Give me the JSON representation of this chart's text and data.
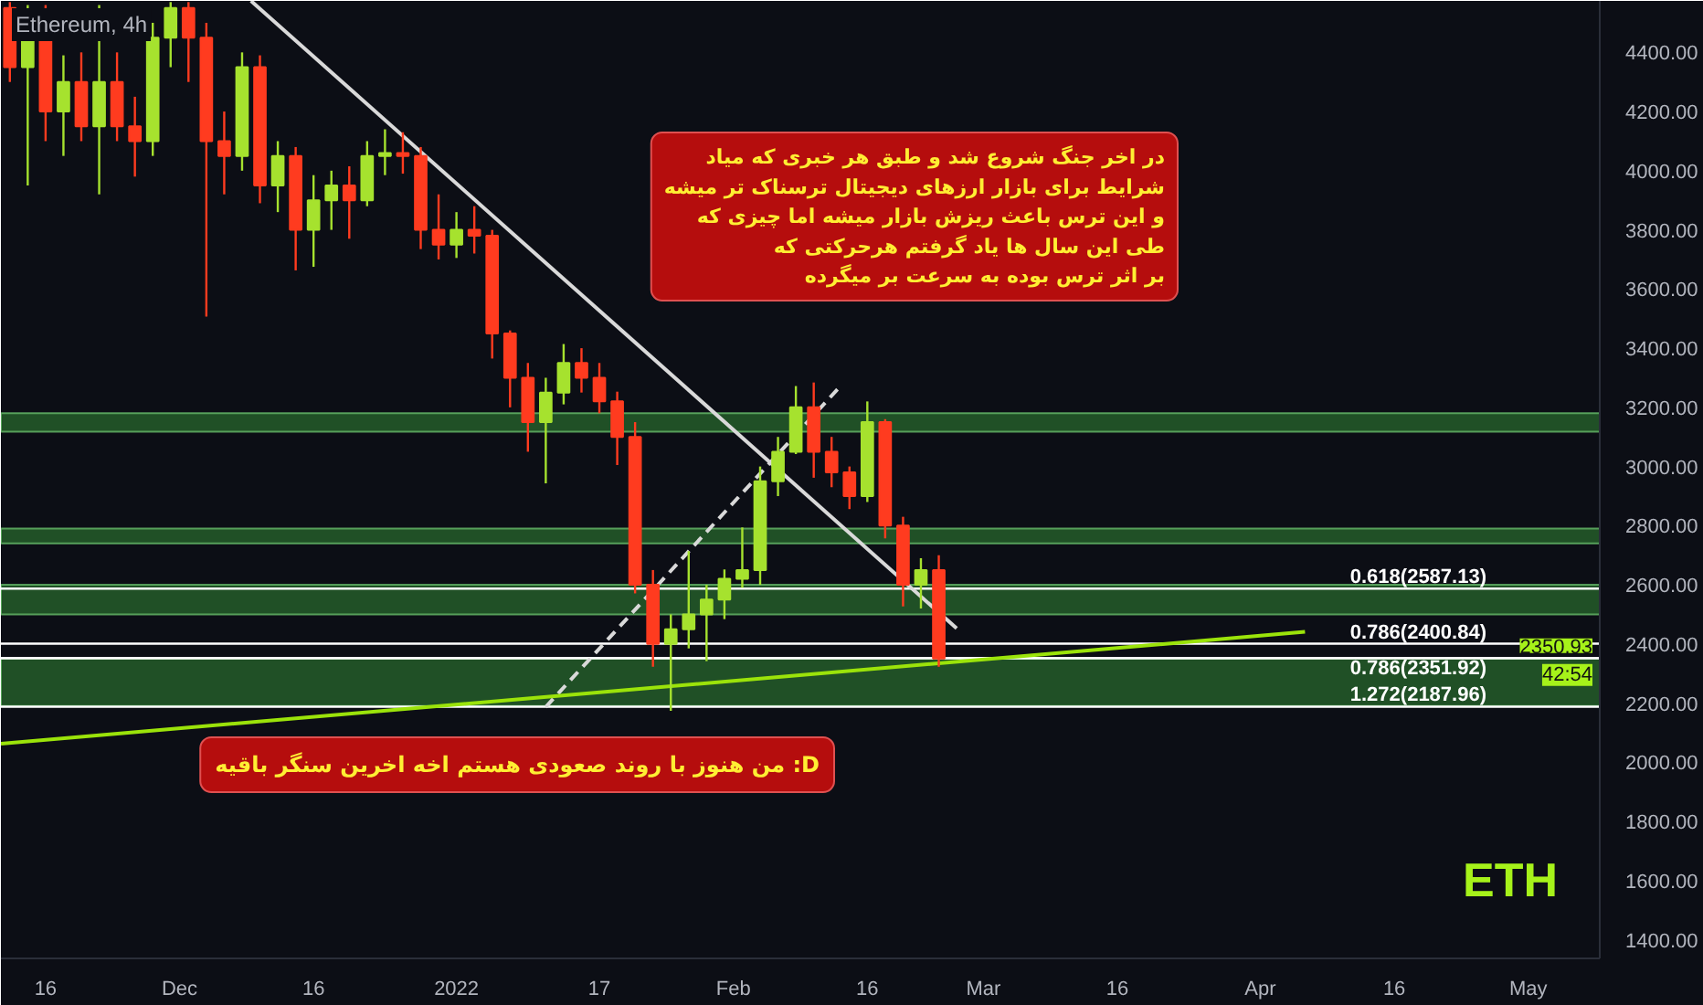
{
  "chart_data": {
    "type": "candlestick",
    "title": "Ethereum, 4h",
    "x": [
      "2021-11-12",
      "2021-11-14",
      "2021-11-16",
      "2021-11-18",
      "2021-11-20",
      "2021-11-22",
      "2021-11-24",
      "2021-11-26",
      "2021-11-28",
      "2021-11-30",
      "2021-12-02",
      "2021-12-04",
      "2021-12-06",
      "2021-12-08",
      "2021-12-10",
      "2021-12-12",
      "2021-12-14",
      "2021-12-16",
      "2021-12-18",
      "2021-12-20",
      "2021-12-22",
      "2021-12-24",
      "2021-12-26",
      "2021-12-28",
      "2021-12-30",
      "2022-01-01",
      "2022-01-03",
      "2022-01-05",
      "2022-01-07",
      "2022-01-09",
      "2022-01-11",
      "2022-01-13",
      "2022-01-15",
      "2022-01-17",
      "2022-01-19",
      "2022-01-21",
      "2022-01-23",
      "2022-01-25",
      "2022-01-27",
      "2022-01-29",
      "2022-01-31",
      "2022-02-02",
      "2022-02-04",
      "2022-02-06",
      "2022-02-08",
      "2022-02-10",
      "2022-02-12",
      "2022-02-14",
      "2022-02-16",
      "2022-02-18",
      "2022-02-20",
      "2022-02-22",
      "2022-02-24"
    ],
    "ohlc": [
      [
        4550,
        4570,
        4300,
        4350
      ],
      [
        4350,
        4560,
        3950,
        4450
      ],
      [
        4450,
        4560,
        4100,
        4200
      ],
      [
        4200,
        4390,
        4050,
        4300
      ],
      [
        4300,
        4400,
        4100,
        4150
      ],
      [
        4150,
        4560,
        3920,
        4300
      ],
      [
        4300,
        4400,
        4100,
        4150
      ],
      [
        4150,
        4250,
        3980,
        4100
      ],
      [
        4100,
        4500,
        4050,
        4450
      ],
      [
        4450,
        4570,
        4350,
        4550
      ],
      [
        4550,
        4570,
        4300,
        4450
      ],
      [
        4450,
        4500,
        3507,
        4100
      ],
      [
        4100,
        4200,
        3920,
        4050
      ],
      [
        4050,
        4400,
        4000,
        4350
      ],
      [
        4350,
        4390,
        3890,
        3950
      ],
      [
        3950,
        4100,
        3860,
        4050
      ],
      [
        4050,
        4080,
        3663,
        3800
      ],
      [
        3800,
        3985,
        3675,
        3900
      ],
      [
        3900,
        4000,
        3800,
        3950
      ],
      [
        3950,
        4015,
        3770,
        3900
      ],
      [
        3900,
        4100,
        3880,
        4050
      ],
      [
        4050,
        4140,
        3985,
        4060
      ],
      [
        4060,
        4130,
        3990,
        4050
      ],
      [
        4050,
        4080,
        3735,
        3800
      ],
      [
        3800,
        3920,
        3700,
        3750
      ],
      [
        3750,
        3860,
        3705,
        3800
      ],
      [
        3800,
        3880,
        3720,
        3780
      ],
      [
        3780,
        3800,
        3365,
        3450
      ],
      [
        3450,
        3460,
        3200,
        3300
      ],
      [
        3300,
        3350,
        3050,
        3150
      ],
      [
        3150,
        3300,
        2943,
        3250
      ],
      [
        3250,
        3414,
        3210,
        3350
      ],
      [
        3350,
        3400,
        3250,
        3300
      ],
      [
        3300,
        3350,
        3180,
        3220
      ],
      [
        3220,
        3253,
        3005,
        3100
      ],
      [
        3100,
        3150,
        2571,
        2600
      ],
      [
        2600,
        2650,
        2323,
        2400
      ],
      [
        2400,
        2500,
        2174,
        2450
      ],
      [
        2450,
        2714,
        2385,
        2500
      ],
      [
        2500,
        2600,
        2342,
        2550
      ],
      [
        2550,
        2652,
        2484,
        2620
      ],
      [
        2620,
        2794,
        2590,
        2650
      ],
      [
        2650,
        3000,
        2600,
        2950
      ],
      [
        2950,
        3100,
        2900,
        3050
      ],
      [
        3050,
        3272,
        3042,
        3200
      ],
      [
        3200,
        3284,
        2962,
        3050
      ],
      [
        3050,
        3100,
        2930,
        2980
      ],
      [
        2980,
        3000,
        2856,
        2900
      ],
      [
        2900,
        3220,
        2880,
        3150
      ],
      [
        3150,
        3160,
        2757,
        2800
      ],
      [
        2800,
        2830,
        2527,
        2600
      ],
      [
        2600,
        2690,
        2520,
        2650
      ],
      [
        2650,
        2700,
        2323,
        2350.93
      ]
    ],
    "series": [
      {
        "type": "line",
        "color": "#d9d9d9",
        "line_style": "solid",
        "x": [
          "2021-12-09",
          "2022-02-26"
        ],
        "values": [
          4574,
          2453
        ]
      },
      {
        "type": "line",
        "color": "#d9d9d9",
        "line_style": "dashed",
        "x": [
          "2022-01-11",
          "2022-02-13"
        ],
        "values": [
          2187,
          3272
        ]
      },
      {
        "type": "line",
        "color": "#9be30a",
        "line_style": "solid",
        "x": [
          "2021-11-11",
          "2022-04-06"
        ],
        "values": [
          2063,
          2441
        ]
      }
    ],
    "xlim": [
      "2021-11-11",
      "2022-05-09"
    ],
    "xticks": [
      {
        "value": "2021-11-16",
        "label": "16"
      },
      {
        "value": "2021-12-01",
        "label": "Dec"
      },
      {
        "value": "2021-12-16",
        "label": "16"
      },
      {
        "value": "2022-01-01",
        "label": "2022"
      },
      {
        "value": "2022-01-17",
        "label": "17"
      },
      {
        "value": "2022-02-01",
        "label": "Feb"
      },
      {
        "value": "2022-02-16",
        "label": "16"
      },
      {
        "value": "2022-03-01",
        "label": "Mar"
      },
      {
        "value": "2022-03-16",
        "label": "16"
      },
      {
        "value": "2022-04-01",
        "label": "Apr"
      },
      {
        "value": "2022-04-16",
        "label": "16"
      },
      {
        "value": "2022-05-01",
        "label": "May"
      }
    ],
    "ylim": [
      1337,
      4574
    ],
    "yticks": [
      {
        "value": 1400,
        "label": "1400.00"
      },
      {
        "value": 1600,
        "label": "1600.00"
      },
      {
        "value": 1800,
        "label": "1800.00"
      },
      {
        "value": 2000,
        "label": "2000.00"
      },
      {
        "value": 2200,
        "label": "2200.00"
      },
      {
        "value": 2400,
        "label": "2400.00"
      },
      {
        "value": 2600,
        "label": "2600.00"
      },
      {
        "value": 2800,
        "label": "2800.00"
      },
      {
        "value": 3000,
        "label": "3000.00"
      },
      {
        "value": 3200,
        "label": "3200.00"
      },
      {
        "value": 3400,
        "label": "3400.00"
      },
      {
        "value": 3600,
        "label": "3600.00"
      },
      {
        "value": 3800,
        "label": "3800.00"
      },
      {
        "value": 4000,
        "label": "4000.00"
      },
      {
        "value": 4200,
        "label": "4200.00"
      },
      {
        "value": 4400,
        "label": "4400.00"
      }
    ],
    "ref_lines": [
      {
        "axis": "y",
        "value": 2587.13,
        "label": "0.618(2587.13)",
        "color": "#ffffff"
      },
      {
        "axis": "y",
        "value": 2400.84,
        "label": "0.786(2400.84)",
        "color": "#ffffff"
      },
      {
        "axis": "y",
        "value": 2351.92,
        "label": "0.786(2351.92)",
        "color": "#ffffff"
      },
      {
        "axis": "y",
        "value": 2187.96,
        "label": "1.272(2187.96)",
        "color": "#ffffff"
      }
    ],
    "bands": [
      {
        "axis": "y",
        "from": 3118,
        "to": 3180,
        "color": "#2e7d32"
      },
      {
        "axis": "y",
        "from": 2740,
        "to": 2790,
        "color": "#2e7d32"
      },
      {
        "axis": "y",
        "from": 2500,
        "to": 2600,
        "color": "#2e7d32"
      },
      {
        "axis": "y",
        "from": 2190,
        "to": 2350,
        "color": "#2e7d32"
      }
    ],
    "annotations": [
      "در اخر جنگ شروع شد و طبق هر خبری که میاد\nشرایط برای بازار ارزهای دیجیتال ترسناک تر میشه\nو این ترس باعث ریزش بازار میشه اما چیزی که\nطی این سال ها یاد گرفتم هرحرکتی که\nبر اثر ترس بوده به سرعت بر میگرده",
      "من هنوز با روند صعودی هستم اخه اخرین سنگر باقیه :D",
      "ETH",
      {
        "text": "2350.93",
        "y": 2350.93
      },
      "42:54"
    ],
    "grid": false
  }
}
